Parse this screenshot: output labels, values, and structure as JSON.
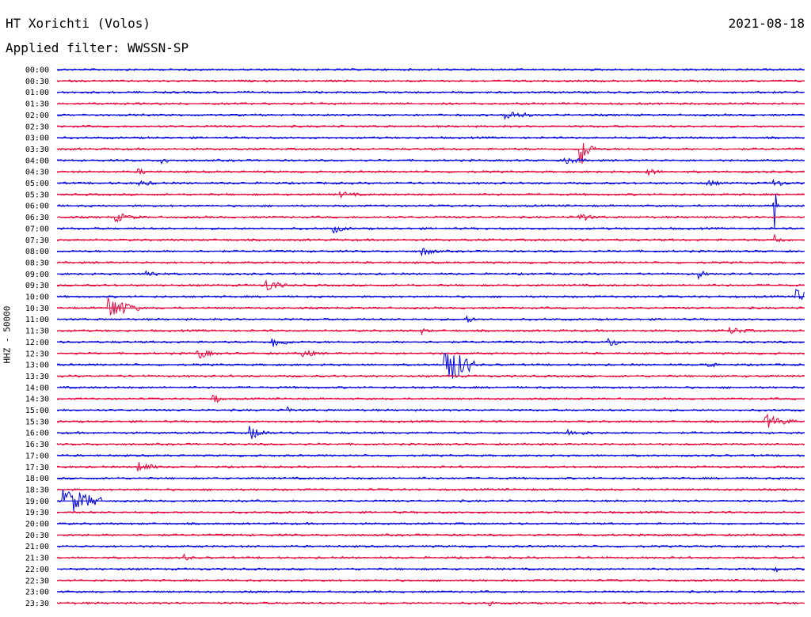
{
  "header": {
    "station": "HT Xorichti (Volos)",
    "date": "2021-08-18",
    "filter": "Applied filter: WWSSN-SP"
  },
  "chart_data": {
    "type": "line",
    "title": "HT Xorichti (Volos)",
    "ylabel": "HHZ - 50000",
    "colors": {
      "even": "#0000dd",
      "odd": "#e8003a"
    },
    "x_range_minutes": [
      0,
      30
    ],
    "rows": [
      "00:00",
      "00:30",
      "01:00",
      "01:30",
      "02:00",
      "02:30",
      "03:00",
      "03:30",
      "04:00",
      "04:30",
      "05:00",
      "05:30",
      "06:00",
      "06:30",
      "07:00",
      "07:30",
      "08:00",
      "08:30",
      "09:00",
      "09:30",
      "10:00",
      "10:30",
      "11:00",
      "11:30",
      "12:00",
      "12:30",
      "13:00",
      "13:30",
      "14:00",
      "14:30",
      "15:00",
      "15:30",
      "16:00",
      "16:30",
      "17:00",
      "17:30",
      "18:00",
      "18:30",
      "19:00",
      "19:30",
      "20:00",
      "20:30",
      "21:00",
      "21:30",
      "22:00",
      "22:30",
      "23:00",
      "23:30"
    ],
    "events": [
      {
        "row": 4,
        "pos": 0.6,
        "amp": 8,
        "dur": 0.03
      },
      {
        "row": 7,
        "pos": 0.7,
        "amp": 30,
        "dur": 0.01
      },
      {
        "row": 8,
        "pos": 0.14,
        "amp": 8,
        "dur": 0.01
      },
      {
        "row": 8,
        "pos": 0.68,
        "amp": 5,
        "dur": 0.03
      },
      {
        "row": 9,
        "pos": 0.11,
        "amp": 4,
        "dur": 0.02
      },
      {
        "row": 9,
        "pos": 0.79,
        "amp": 5,
        "dur": 0.02
      },
      {
        "row": 10,
        "pos": 0.11,
        "amp": 4,
        "dur": 0.03
      },
      {
        "row": 10,
        "pos": 0.87,
        "amp": 5,
        "dur": 0.02
      },
      {
        "row": 10,
        "pos": 0.96,
        "amp": 5,
        "dur": 0.02
      },
      {
        "row": 11,
        "pos": 0.38,
        "amp": 4,
        "dur": 0.03
      },
      {
        "row": 12,
        "pos": 0.96,
        "amp": 40,
        "dur": 0.002
      },
      {
        "row": 13,
        "pos": 0.08,
        "amp": 6,
        "dur": 0.03
      },
      {
        "row": 13,
        "pos": 0.7,
        "amp": 6,
        "dur": 0.02
      },
      {
        "row": 14,
        "pos": 0.37,
        "amp": 6,
        "dur": 0.02
      },
      {
        "row": 15,
        "pos": 0.96,
        "amp": 10,
        "dur": 0.01
      },
      {
        "row": 16,
        "pos": 0.49,
        "amp": 6,
        "dur": 0.02
      },
      {
        "row": 18,
        "pos": 0.12,
        "amp": 6,
        "dur": 0.02
      },
      {
        "row": 18,
        "pos": 0.86,
        "amp": 6,
        "dur": 0.01
      },
      {
        "row": 19,
        "pos": 0.28,
        "amp": 10,
        "dur": 0.02
      },
      {
        "row": 20,
        "pos": 0.99,
        "amp": 10,
        "dur": 0.03
      },
      {
        "row": 21,
        "pos": 0.07,
        "amp": 16,
        "dur": 0.03
      },
      {
        "row": 22,
        "pos": 0.55,
        "amp": 5,
        "dur": 0.01
      },
      {
        "row": 23,
        "pos": 0.49,
        "amp": 5,
        "dur": 0.01
      },
      {
        "row": 23,
        "pos": 0.9,
        "amp": 5,
        "dur": 0.03
      },
      {
        "row": 24,
        "pos": 0.29,
        "amp": 8,
        "dur": 0.02
      },
      {
        "row": 24,
        "pos": 0.74,
        "amp": 6,
        "dur": 0.02
      },
      {
        "row": 25,
        "pos": 0.19,
        "amp": 7,
        "dur": 0.02
      },
      {
        "row": 25,
        "pos": 0.33,
        "amp": 6,
        "dur": 0.02
      },
      {
        "row": 26,
        "pos": 0.52,
        "amp": 30,
        "dur": 0.03
      },
      {
        "row": 26,
        "pos": 0.87,
        "amp": 7,
        "dur": 0.01
      },
      {
        "row": 29,
        "pos": 0.21,
        "amp": 8,
        "dur": 0.01
      },
      {
        "row": 30,
        "pos": 0.31,
        "amp": 6,
        "dur": 0.005
      },
      {
        "row": 31,
        "pos": 0.95,
        "amp": 9,
        "dur": 0.03
      },
      {
        "row": 32,
        "pos": 0.26,
        "amp": 9,
        "dur": 0.02
      },
      {
        "row": 32,
        "pos": 0.68,
        "amp": 5,
        "dur": 0.04
      },
      {
        "row": 35,
        "pos": 0.11,
        "amp": 8,
        "dur": 0.02
      },
      {
        "row": 38,
        "pos": 0.01,
        "amp": 20,
        "dur": 0.04
      },
      {
        "row": 38,
        "pos": 0.24,
        "amp": 4,
        "dur": 0.01
      },
      {
        "row": 43,
        "pos": 0.17,
        "amp": 6,
        "dur": 0.01
      },
      {
        "row": 44,
        "pos": 0.96,
        "amp": 5,
        "dur": 0.01
      },
      {
        "row": 47,
        "pos": 0.58,
        "amp": 5,
        "dur": 0.005
      }
    ]
  }
}
